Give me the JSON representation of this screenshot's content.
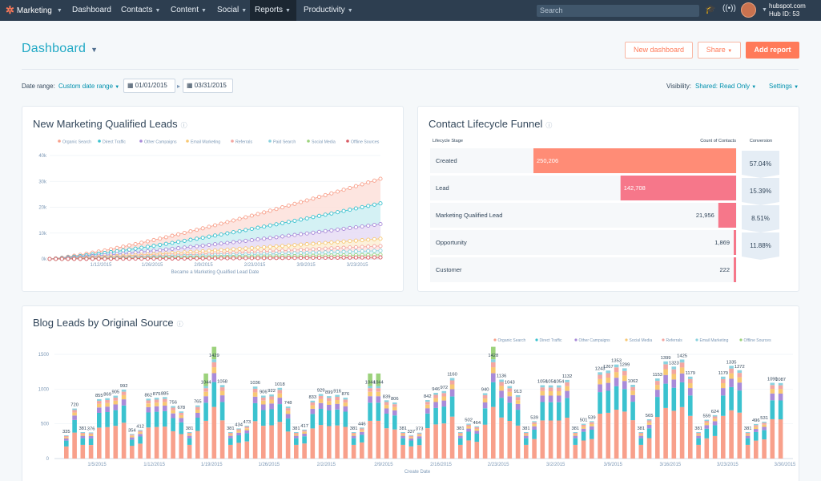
{
  "nav": {
    "brand": "Marketing",
    "items": [
      {
        "label": "Dashboard"
      },
      {
        "label": "Contacts"
      },
      {
        "label": "Content"
      },
      {
        "label": "Social"
      },
      {
        "label": "Reports"
      },
      {
        "label": "Productivity"
      }
    ],
    "search_placeholder": "Search",
    "account_name": "hubspot.com",
    "hub_id": "Hub ID: 53"
  },
  "header": {
    "title": "Dashboard",
    "new_dashboard": "New dashboard",
    "share": "Share",
    "add_report": "Add report"
  },
  "filters": {
    "date_range_label": "Date range:",
    "date_range_value": "Custom date range",
    "start_date": "01/01/2015",
    "end_date": "03/31/2015",
    "visibility_label": "Visibility:",
    "visibility_value": "Shared: Read Only",
    "settings": "Settings"
  },
  "colors": {
    "organic": "#f8a08b",
    "direct": "#3bc2cf",
    "other": "#a98bd9",
    "email": "#f7c873",
    "referrals": "#f3a6a1",
    "paid": "#8ad2df",
    "social": "#9cd27c",
    "offline": "#d85a63",
    "funnel": "#ff8c76",
    "funnel_dark": "#f67582"
  },
  "mql_card": {
    "title": "New Marketing Qualified Leads",
    "chart_data": {
      "type": "area",
      "legend": [
        "Organic Search",
        "Direct Traffic",
        "Other Campaigns",
        "Email Marketing",
        "Referrals",
        "Paid Search",
        "Social Media",
        "Offline Sources"
      ],
      "xlabel": "Became a Marketing Qualified Lead Date",
      "x_ticks": [
        "1/12/2015",
        "1/26/2015",
        "2/9/2015",
        "2/23/2015",
        "3/9/2015",
        "3/23/2015"
      ],
      "y_ticks": [
        "0k",
        "10k",
        "20k",
        "30k",
        "40k"
      ],
      "ylim": [
        0,
        40000
      ],
      "series_end_values": [
        {
          "name": "Organic Search",
          "end": 31000
        },
        {
          "name": "Direct Traffic",
          "end": 21500
        },
        {
          "name": "Other Campaigns",
          "end": 13500
        },
        {
          "name": "Email Marketing",
          "end": 7800
        },
        {
          "name": "Referrals",
          "end": 5000
        },
        {
          "name": "Paid Search",
          "end": 3200
        },
        {
          "name": "Social Media",
          "end": 1600
        },
        {
          "name": "Offline Sources",
          "end": 600
        }
      ]
    }
  },
  "funnel_card": {
    "title": "Contact Lifecycle Funnel",
    "col_stage": "Lifecycle Stage",
    "col_count": "Count of Contacts",
    "col_conversion": "Conversion",
    "chart_data": {
      "type": "bar",
      "categories": [
        "Created",
        "Lead",
        "Marketing Qualified Lead",
        "Opportunity",
        "Customer"
      ],
      "values": [
        250206,
        142708,
        21956,
        1869,
        222
      ],
      "value_labels": [
        "250,206",
        "142,708",
        "21,956",
        "1,869",
        "222"
      ],
      "conversions": [
        "57.04%",
        "15.39%",
        "8.51%",
        "11.88%"
      ]
    }
  },
  "blog_card": {
    "title": "Blog Leads by Original Source",
    "chart_data": {
      "type": "bar",
      "stacked": true,
      "legend": [
        "Organic Search",
        "Direct Traffic",
        "Other Campaigns",
        "Social Media",
        "Referrals",
        "Email Marketing",
        "Offline Sources"
      ],
      "xlabel": "Create Date",
      "x_ticks": [
        "1/5/2015",
        "1/12/2015",
        "1/19/2015",
        "1/26/2015",
        "2/2/2015",
        "2/9/2015",
        "2/16/2015",
        "2/23/2015",
        "3/2/2015",
        "3/9/2015",
        "3/16/2015",
        "3/23/2015",
        "3/30/2015"
      ],
      "y_ticks": [
        "0",
        "500",
        "1000",
        "1500"
      ],
      "ylim": [
        0,
        1500
      ],
      "totals": [
        335,
        720,
        381,
        376,
        855,
        869,
        905,
        992,
        354,
        412,
        862,
        875,
        885,
        756,
        678,
        381,
        765,
        1044,
        1429,
        1058,
        381,
        434,
        473,
        1036,
        906,
        922,
        1018,
        748,
        381,
        417,
        833,
        929,
        899,
        916,
        876,
        381,
        446,
        1044,
        1044,
        839,
        806,
        381,
        337,
        373,
        842,
        946,
        972,
        1160,
        381,
        502,
        464,
        940,
        1428,
        1136,
        1043,
        913,
        381,
        539,
        1056,
        1054,
        1054,
        1132,
        381,
        501,
        539,
        1243,
        1267,
        1353,
        1299,
        1062,
        381,
        565,
        1153,
        1399,
        1323,
        1425,
        1179,
        381,
        559,
        624,
        1179,
        1335,
        1272,
        381,
        496,
        531,
        1090,
        1087
      ]
    }
  }
}
